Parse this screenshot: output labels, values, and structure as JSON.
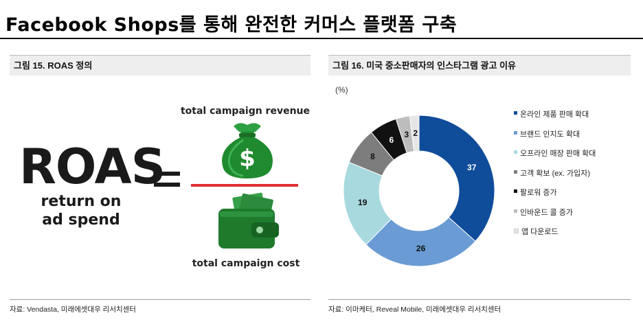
{
  "header": {
    "title": "Facebook Shops를 통해 완전한 커머스 플랫폼 구축"
  },
  "left_figure": {
    "heading": "그림 15.  ROAS 정의",
    "roas_text": "ROAS",
    "roas_sub": [
      "return on",
      "ad spend"
    ],
    "numerator_label": "total campaign revenue",
    "denominator_label": "total campaign cost",
    "source": "자료: Vendasta, 미래에셋대우 리서치센터",
    "icons": [
      "money-bag-icon",
      "wallet-icon"
    ],
    "colors": {
      "money": "#1f8a2e",
      "fraction_line": "#e03030"
    }
  },
  "right_figure": {
    "heading": "그림 16. 미국 중소판매자의 인스타그램 광고 이유",
    "unit_label": "(%)",
    "source": "자료: 이마케터, Reveal Mobile, 미래에셋대우 리서치센터"
  },
  "chart_data": {
    "type": "pie",
    "style": "donut",
    "categories": [
      "온라인 제품 판매 확대",
      "브랜드 인지도 확대",
      "오프라인 매장 판매 확대",
      "고객 확보 (ex. 가입자)",
      "팔로워 증가",
      "인바운드 콜 증가",
      "앱 다운로드"
    ],
    "values": [
      37,
      26,
      19,
      8,
      6,
      3,
      2
    ],
    "colors": [
      "#0f4c9a",
      "#6a9bd4",
      "#a8d9df",
      "#7d7d7d",
      "#111111",
      "#bdbdbd",
      "#e6e6e6"
    ],
    "label_colors": [
      "#ffffff",
      "#111111",
      "#111111",
      "#111111",
      "#ffffff",
      "#111111",
      "#111111"
    ],
    "legend_position": "right",
    "unit": "(%)"
  }
}
